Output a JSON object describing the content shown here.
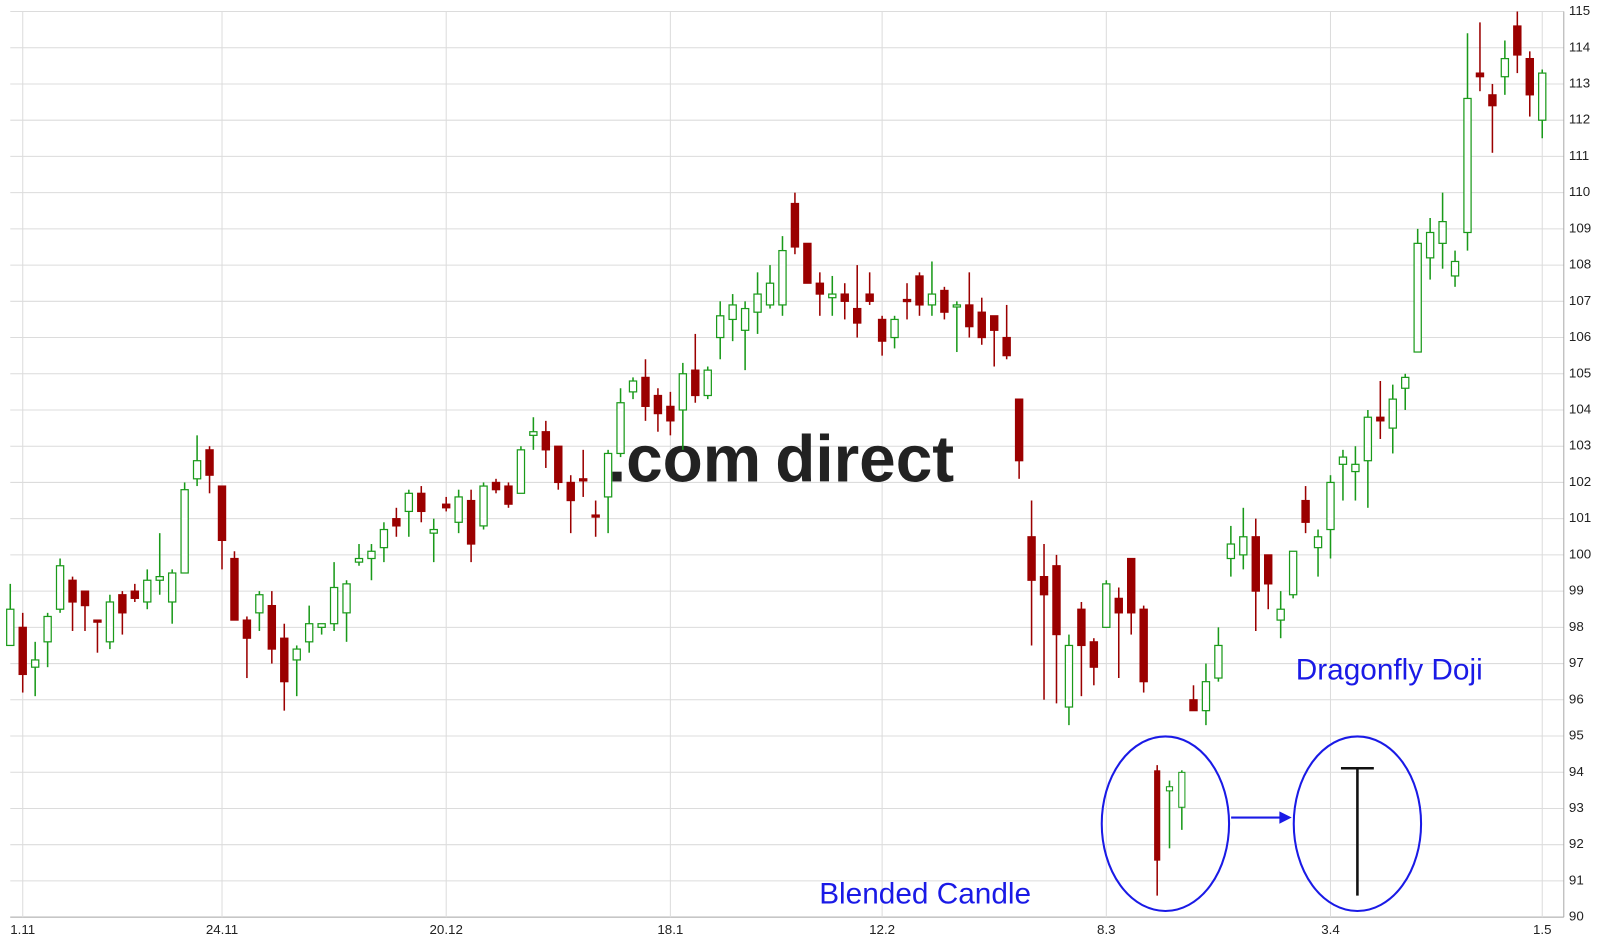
{
  "chart_data": {
    "type": "candlestick",
    "watermark": [
      ".com",
      "direct"
    ],
    "annotations": [
      "Blended Candle",
      "Dragonfly Doji"
    ],
    "up_color": "#1a9a1a",
    "down_color": "#9b0000",
    "grid": true,
    "ylim": [
      90,
      115
    ],
    "yticks": [
      90,
      91,
      92,
      93,
      94,
      95,
      96,
      97,
      98,
      99,
      100,
      101,
      102,
      103,
      104,
      105,
      106,
      107,
      108,
      109,
      110,
      111,
      112,
      113,
      114,
      115
    ],
    "categories": [
      null,
      "1.11",
      null,
      null,
      null,
      null,
      null,
      null,
      null,
      null,
      null,
      null,
      null,
      null,
      null,
      null,
      null,
      "24.11",
      null,
      null,
      null,
      null,
      null,
      null,
      null,
      null,
      null,
      null,
      null,
      null,
      null,
      null,
      null,
      null,
      null,
      "20.12",
      null,
      null,
      null,
      null,
      null,
      null,
      null,
      null,
      null,
      null,
      null,
      null,
      null,
      null,
      null,
      null,
      null,
      "18.1",
      null,
      null,
      null,
      null,
      null,
      null,
      null,
      null,
      null,
      null,
      null,
      null,
      null,
      null,
      null,
      null,
      "12.2",
      null,
      null,
      null,
      null,
      null,
      null,
      null,
      null,
      null,
      null,
      null,
      null,
      null,
      null,
      null,
      null,
      null,
      "8.3",
      null,
      null,
      null,
      null,
      null,
      null,
      null,
      null,
      null,
      null,
      null,
      null,
      null,
      null,
      null,
      null,
      null,
      "3.4",
      null,
      null,
      null,
      null,
      null,
      null,
      null,
      null,
      null,
      null,
      null,
      null,
      null,
      null,
      null,
      null,
      "1.5"
    ],
    "open": [
      97.5,
      98.0,
      96.9,
      97.6,
      98.5,
      99.3,
      99.0,
      98.2,
      97.6,
      98.9,
      99.0,
      98.7,
      99.3,
      98.7,
      99.5,
      102.1,
      102.9,
      101.9,
      99.9,
      98.2,
      98.4,
      98.6,
      97.7,
      97.1,
      97.6,
      98.0,
      98.1,
      98.4,
      99.8,
      99.9,
      100.2,
      101.0,
      101.2,
      101.7,
      100.6,
      101.4,
      100.9,
      101.5,
      100.8,
      102.0,
      101.9,
      101.7,
      103.3,
      103.4,
      103.0,
      102.0,
      102.1,
      101.1,
      101.6,
      102.8,
      104.5,
      104.9,
      104.4,
      104.1,
      104.0,
      105.1,
      104.4,
      106.0,
      106.5,
      106.2,
      106.7,
      106.9,
      106.9,
      109.7,
      108.6,
      107.5,
      107.1,
      107.2,
      106.8,
      107.2,
      106.5,
      106.0,
      107.05,
      107.7,
      106.9,
      107.3,
      106.85,
      106.9,
      106.7,
      106.6,
      106.0,
      104.3,
      100.5,
      99.4,
      99.7,
      95.8,
      98.5,
      97.6,
      98.0,
      98.8,
      99.9,
      98.5,
      null,
      null,
      null,
      96.0,
      95.7,
      96.6,
      99.9,
      100.0,
      100.5,
      100.0,
      98.2,
      98.9,
      101.5,
      100.2,
      100.7,
      102.5,
      102.3,
      102.6,
      103.8,
      103.5,
      104.6,
      105.6,
      108.2,
      108.6,
      107.7,
      108.9,
      113.3,
      112.7,
      113.2,
      114.6,
      113.7,
      112.0
    ],
    "high": [
      99.2,
      98.4,
      97.6,
      98.4,
      99.9,
      99.4,
      99.0,
      98.2,
      98.9,
      99.0,
      99.2,
      99.6,
      100.6,
      99.6,
      102.0,
      103.3,
      103.0,
      101.9,
      100.1,
      98.3,
      99.0,
      99.0,
      98.1,
      97.5,
      98.6,
      98.1,
      99.8,
      99.3,
      100.3,
      100.3,
      100.9,
      101.3,
      101.8,
      101.9,
      101.0,
      101.6,
      101.8,
      101.8,
      102.0,
      102.1,
      102.0,
      103.0,
      103.8,
      103.7,
      103.0,
      102.2,
      102.9,
      101.5,
      102.9,
      104.6,
      104.9,
      105.4,
      104.6,
      104.5,
      105.3,
      106.1,
      105.2,
      107.0,
      107.2,
      107.0,
      107.8,
      108.0,
      108.8,
      110.0,
      108.6,
      107.8,
      107.7,
      107.5,
      108.0,
      107.8,
      106.6,
      106.6,
      107.5,
      107.8,
      108.1,
      107.4,
      107.0,
      107.8,
      107.1,
      106.6,
      106.9,
      104.3,
      101.5,
      100.3,
      100.0,
      97.8,
      98.7,
      97.7,
      99.3,
      99.1,
      99.9,
      98.6,
      null,
      null,
      null,
      96.4,
      97.0,
      98.0,
      100.8,
      101.3,
      101.0,
      100.0,
      99.0,
      100.1,
      101.9,
      100.7,
      102.2,
      102.9,
      103.0,
      104.0,
      104.8,
      104.7,
      105.0,
      109.0,
      109.3,
      110.0,
      108.4,
      114.4,
      114.7,
      113.0,
      114.2,
      115.0,
      113.9,
      113.4
    ],
    "low": [
      97.5,
      96.2,
      96.1,
      96.9,
      98.4,
      97.9,
      97.9,
      97.3,
      97.4,
      97.8,
      98.7,
      98.5,
      98.9,
      98.1,
      99.5,
      101.9,
      101.7,
      99.6,
      98.2,
      96.6,
      97.9,
      97.0,
      95.7,
      96.1,
      97.3,
      97.8,
      97.9,
      97.6,
      99.7,
      99.3,
      99.8,
      100.5,
      100.5,
      100.9,
      99.8,
      101.2,
      100.6,
      99.8,
      100.7,
      101.7,
      101.3,
      101.7,
      102.9,
      102.4,
      101.8,
      100.6,
      101.6,
      100.5,
      100.6,
      102.7,
      104.3,
      103.7,
      103.4,
      103.3,
      102.9,
      104.2,
      104.3,
      105.4,
      105.9,
      105.1,
      106.1,
      106.8,
      106.6,
      108.3,
      107.5,
      106.6,
      106.6,
      106.5,
      106.0,
      106.9,
      105.5,
      105.7,
      106.5,
      106.6,
      106.6,
      106.5,
      105.6,
      106.0,
      105.8,
      105.2,
      105.4,
      102.1,
      97.5,
      96.0,
      95.9,
      95.3,
      96.1,
      96.4,
      98.0,
      96.6,
      97.8,
      96.2,
      null,
      null,
      null,
      95.7,
      95.3,
      96.5,
      99.4,
      99.6,
      97.9,
      98.5,
      97.7,
      98.8,
      100.6,
      99.4,
      99.9,
      101.5,
      101.5,
      101.3,
      103.2,
      102.8,
      104.0,
      105.6,
      107.6,
      107.9,
      107.4,
      108.4,
      112.8,
      111.1,
      112.7,
      113.3,
      112.1,
      111.5
    ],
    "close": [
      98.5,
      96.7,
      97.1,
      98.3,
      99.7,
      98.7,
      98.6,
      98.15,
      98.7,
      98.4,
      98.8,
      99.3,
      99.4,
      99.5,
      101.8,
      102.6,
      102.2,
      100.4,
      98.2,
      97.7,
      98.9,
      97.4,
      96.5,
      97.4,
      98.1,
      98.1,
      99.1,
      99.2,
      99.9,
      100.1,
      100.7,
      100.8,
      101.7,
      101.2,
      100.7,
      101.3,
      101.6,
      100.3,
      101.9,
      101.8,
      101.4,
      102.9,
      103.4,
      102.9,
      102.0,
      101.5,
      102.05,
      101.05,
      102.8,
      104.2,
      104.8,
      104.1,
      103.9,
      103.7,
      105.0,
      104.4,
      105.1,
      106.6,
      106.9,
      106.8,
      107.2,
      107.5,
      108.4,
      108.5,
      107.5,
      107.2,
      107.2,
      107.0,
      106.4,
      107.0,
      105.9,
      106.5,
      107.0,
      106.9,
      107.2,
      106.7,
      106.9,
      106.3,
      106.0,
      106.2,
      105.5,
      102.6,
      99.3,
      98.9,
      97.8,
      97.5,
      97.5,
      96.9,
      99.2,
      98.4,
      98.4,
      96.5,
      null,
      null,
      null,
      95.7,
      96.5,
      97.5,
      100.3,
      100.5,
      99.0,
      99.2,
      98.5,
      100.1,
      100.9,
      100.5,
      102.0,
      102.7,
      102.5,
      103.8,
      103.7,
      104.3,
      104.9,
      108.6,
      108.9,
      109.2,
      108.1,
      112.6,
      113.2,
      112.4,
      113.7,
      113.8,
      112.7,
      113.3
    ]
  }
}
